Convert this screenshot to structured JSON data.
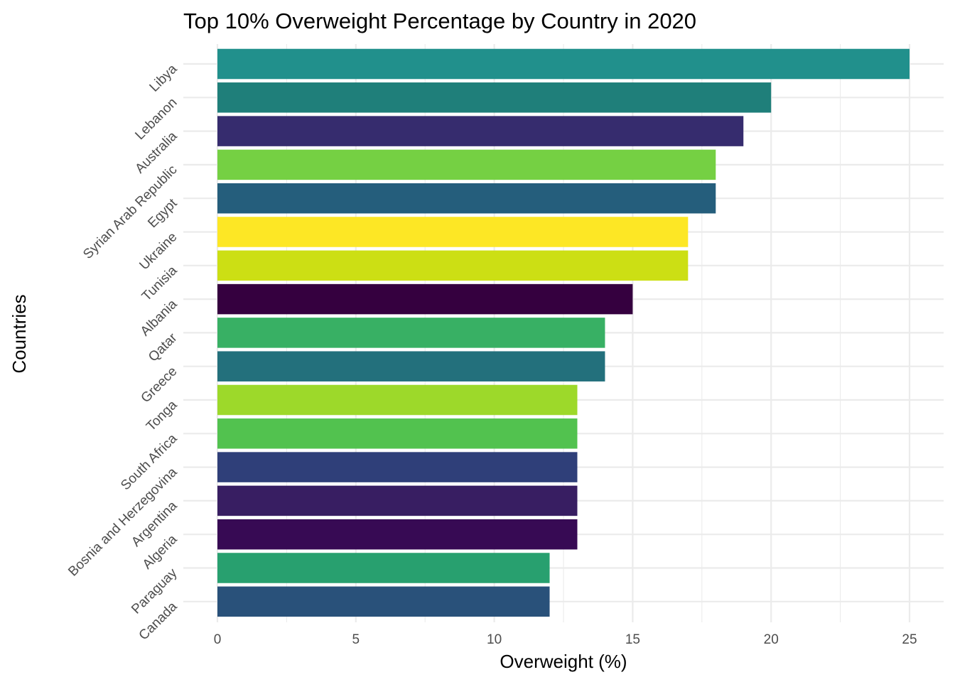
{
  "chart_data": {
    "type": "bar",
    "orientation": "horizontal",
    "title": "Top 10% Overweight Percentage by Country in 2020",
    "xlabel": "Overweight (%)",
    "ylabel": "Countries",
    "xlim": [
      0,
      25
    ],
    "x_ticks": [
      "0",
      "5",
      "10",
      "15",
      "20",
      "25"
    ],
    "grid": true,
    "legend": "none",
    "bars": [
      {
        "category": "Libya",
        "value": 25,
        "color": "#21908C"
      },
      {
        "category": "Lebanon",
        "value": 20,
        "color": "#1F7F7A"
      },
      {
        "category": "Australia",
        "value": 19,
        "color": "#362C6E"
      },
      {
        "category": "Syrian Arab Republic",
        "value": 18,
        "color": "#75D043"
      },
      {
        "category": "Egypt",
        "value": 18,
        "color": "#255E7C"
      },
      {
        "category": "Ukraine",
        "value": 17,
        "color": "#FDE725"
      },
      {
        "category": "Tunisia",
        "value": 17,
        "color": "#CCDF14"
      },
      {
        "category": "Albania",
        "value": 15,
        "color": "#35003F"
      },
      {
        "category": "Qatar",
        "value": 14,
        "color": "#38B064"
      },
      {
        "category": "Greece",
        "value": 14,
        "color": "#23707C"
      },
      {
        "category": "Tonga",
        "value": 13,
        "color": "#9DD92A"
      },
      {
        "category": "South Africa",
        "value": 13,
        "color": "#52C24F"
      },
      {
        "category": "Bosnia and Herzegovina",
        "value": 13,
        "color": "#2F3F79"
      },
      {
        "category": "Argentina",
        "value": 13,
        "color": "#381E62"
      },
      {
        "category": "Algeria",
        "value": 13,
        "color": "#370A54"
      },
      {
        "category": "Paraguay",
        "value": 12,
        "color": "#28A06F"
      },
      {
        "category": "Canada",
        "value": 12,
        "color": "#29517A"
      }
    ]
  }
}
